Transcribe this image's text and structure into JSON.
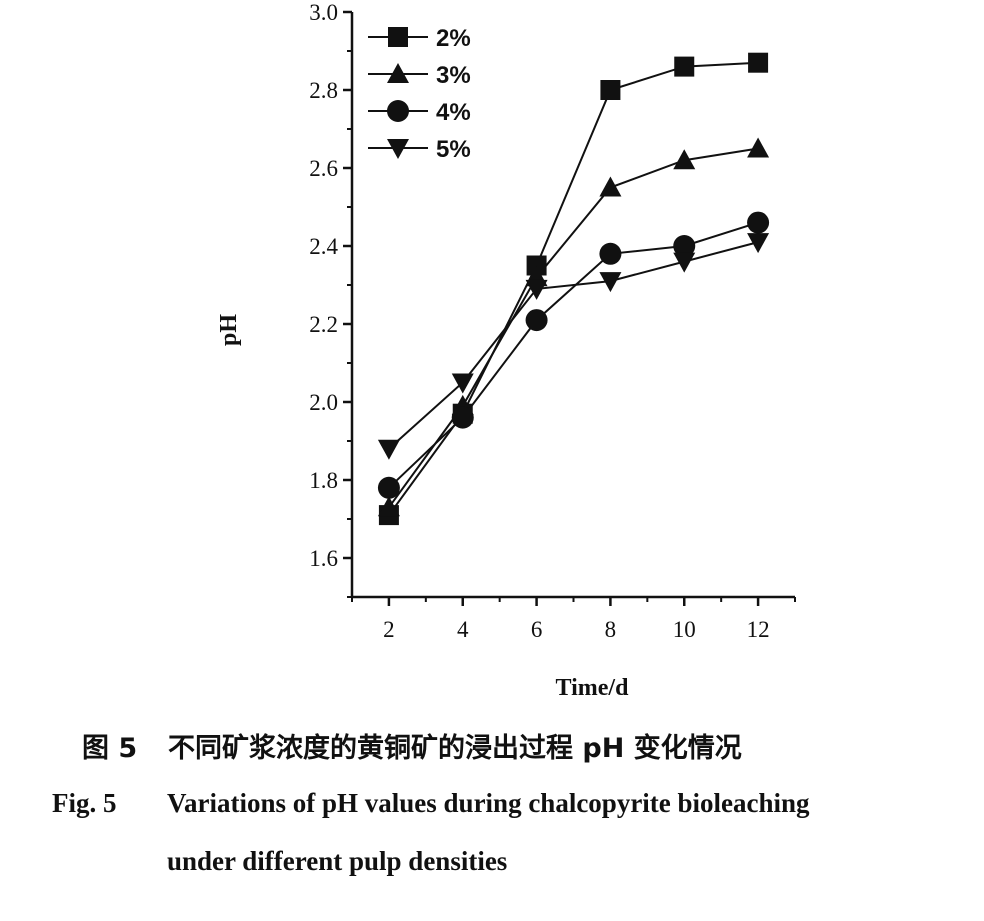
{
  "chart_data": {
    "type": "line",
    "xlabel": "Time/d",
    "ylabel": "pH",
    "xlim": [
      1,
      13
    ],
    "ylim": [
      1.5,
      3.0
    ],
    "xticks": [
      2,
      4,
      6,
      8,
      10,
      12
    ],
    "yticks": [
      1.6,
      1.8,
      2.0,
      2.2,
      2.4,
      2.6,
      2.8,
      3.0
    ],
    "ytick_labels": [
      "1.6",
      "1.8",
      "2.0",
      "2.2",
      "2.4",
      "2.6",
      "2.8",
      "3.0"
    ],
    "grid": false,
    "legend_position": "top-left",
    "series": [
      {
        "name": "2%",
        "marker": "square",
        "x": [
          2,
          4,
          6,
          8,
          10,
          12
        ],
        "values": [
          1.71,
          1.97,
          2.35,
          2.8,
          2.86,
          2.87
        ]
      },
      {
        "name": "3%",
        "marker": "triangle-up",
        "x": [
          2,
          4,
          6,
          8,
          10,
          12
        ],
        "values": [
          1.73,
          1.99,
          2.32,
          2.55,
          2.62,
          2.65
        ]
      },
      {
        "name": "4%",
        "marker": "circle",
        "x": [
          2,
          4,
          6,
          8,
          10,
          12
        ],
        "values": [
          1.78,
          1.96,
          2.21,
          2.38,
          2.4,
          2.46
        ]
      },
      {
        "name": "5%",
        "marker": "triangle-down",
        "x": [
          2,
          4,
          6,
          8,
          10,
          12
        ],
        "values": [
          1.88,
          2.05,
          2.29,
          2.31,
          2.36,
          2.41
        ]
      }
    ]
  },
  "caption": {
    "cn_number": "图 5",
    "cn_text": "不同矿浆浓度的黄铜矿的浸出过程 pH 变化情况",
    "en_number": "Fig. 5",
    "en_line1": "Variations of pH values during chalcopyrite bioleaching",
    "en_line2": "under different pulp densities"
  }
}
